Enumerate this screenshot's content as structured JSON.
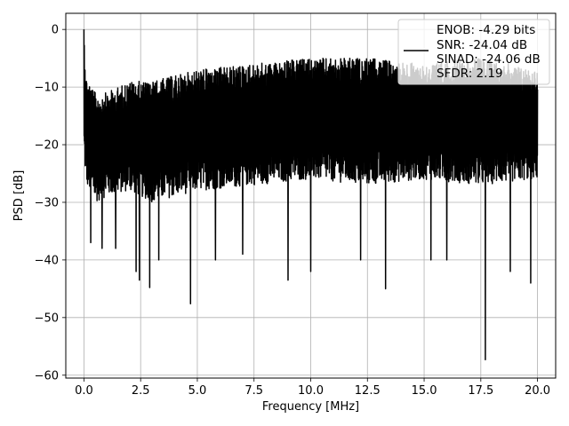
{
  "chart_data": {
    "type": "line",
    "title": "",
    "xlabel": "Frequency [MHz]",
    "ylabel": "PSD [dB]",
    "xlim": [
      -0.8,
      20.8
    ],
    "ylim": [
      -60.5,
      2.8
    ],
    "x_ticks": [
      0.0,
      2.5,
      5.0,
      7.5,
      10.0,
      12.5,
      15.0,
      17.5,
      20.0
    ],
    "x_tick_labels": [
      "0.0",
      "2.5",
      "5.0",
      "7.5",
      "10.0",
      "12.5",
      "15.0",
      "17.5",
      "20.0"
    ],
    "y_ticks": [
      0,
      -10,
      -20,
      -30,
      -40,
      -50,
      -60
    ],
    "y_tick_labels": [
      "0",
      "−10",
      "−20",
      "−30",
      "−40",
      "−50",
      "−60"
    ],
    "grid": true,
    "legend_position": "top-right",
    "legend_lines": [
      "ENOB: -4.29 bits",
      "SNR: -24.04 dB",
      "SINAD: -24.06 dB",
      "SFDR: 2.19"
    ],
    "series": [
      {
        "color": "#000000",
        "x_range": [
          0.0,
          20.0
        ],
        "peak": {
          "x": 0.0,
          "y": 0
        },
        "envelope_x": [
          0.0,
          0.1,
          0.5,
          1.0,
          2.0,
          3.0,
          4.0,
          5.0,
          7.5,
          10.0,
          12.5,
          15.0,
          17.5,
          20.0
        ],
        "envelope_upper": [
          0,
          -8,
          -11,
          -11,
          -9,
          -9,
          -8,
          -7,
          -6,
          -5,
          -5,
          -6,
          -5,
          -7
        ],
        "envelope_lower": [
          -22,
          -27,
          -30,
          -29,
          -28,
          -30,
          -29,
          -28,
          -27,
          -26,
          -27,
          -26,
          -27,
          -26
        ],
        "deep_nulls": [
          {
            "x": 0.3,
            "y": -37
          },
          {
            "x": 0.8,
            "y": -38
          },
          {
            "x": 1.4,
            "y": -38
          },
          {
            "x": 2.3,
            "y": -42
          },
          {
            "x": 2.45,
            "y": -43.5
          },
          {
            "x": 2.9,
            "y": -44.8
          },
          {
            "x": 3.3,
            "y": -40
          },
          {
            "x": 4.7,
            "y": -47.6
          },
          {
            "x": 5.8,
            "y": -40
          },
          {
            "x": 7.0,
            "y": -39
          },
          {
            "x": 9.0,
            "y": -43.5
          },
          {
            "x": 10.0,
            "y": -42
          },
          {
            "x": 12.2,
            "y": -40
          },
          {
            "x": 13.3,
            "y": -45
          },
          {
            "x": 15.3,
            "y": -40
          },
          {
            "x": 16.0,
            "y": -40
          },
          {
            "x": 17.7,
            "y": -57.3
          },
          {
            "x": 18.8,
            "y": -42
          },
          {
            "x": 19.7,
            "y": -44
          }
        ]
      }
    ]
  }
}
